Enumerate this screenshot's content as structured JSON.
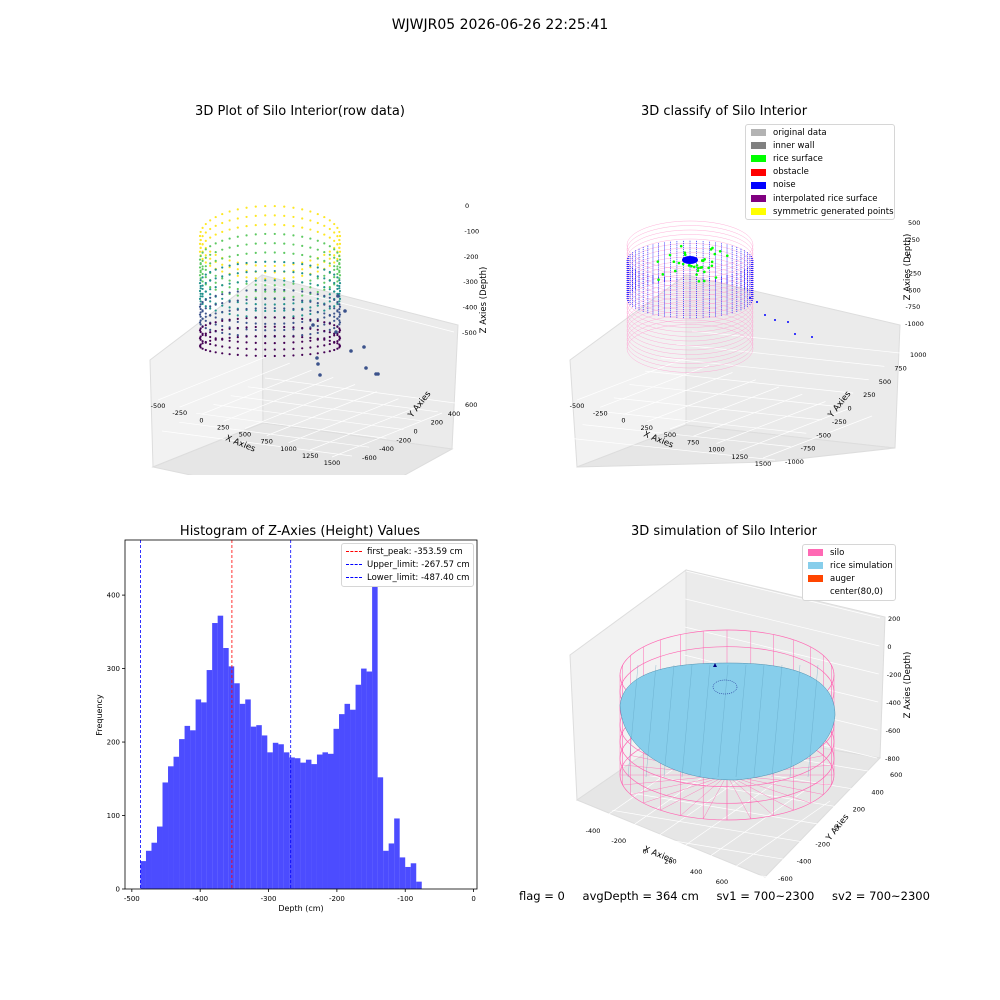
{
  "suptitle": "WJWJR05 2026-06-26 22:25:41",
  "panels": {
    "raw": {
      "title": "3D Plot of Silo Interior(row data)",
      "xlabel": "X Axies",
      "ylabel": "Y Axies",
      "zlabel": "Z Axies (Depth)",
      "x_ticks": [
        "-500",
        "-250",
        "0",
        "250",
        "500",
        "750",
        "1000",
        "1250",
        "1500"
      ],
      "y_ticks": [
        "-600",
        "-400",
        "-200",
        "0",
        "200",
        "400",
        "600"
      ],
      "z_ticks": [
        "0",
        "-100",
        "-200",
        "-300",
        "-400",
        "-500"
      ]
    },
    "classify": {
      "title": "3D classify of Silo Interior",
      "xlabel": "X Axies",
      "ylabel": "Y Axies",
      "zlabel": "Z Axies (Depth)",
      "x_ticks": [
        "-500",
        "-250",
        "0",
        "250",
        "500",
        "750",
        "1000",
        "1250",
        "1500"
      ],
      "y_ticks": [
        "-1000",
        "-750",
        "-500",
        "-250",
        "0",
        "250",
        "500",
        "750",
        "1000"
      ],
      "z_ticks": [
        "500",
        "250",
        "0",
        "-250",
        "-500",
        "-750",
        "-1000"
      ],
      "legend": [
        {
          "label": "original data",
          "color": "#b3b3b3"
        },
        {
          "label": "inner wall",
          "color": "#808080"
        },
        {
          "label": "rice surface",
          "color": "#00ff00"
        },
        {
          "label": "obstacle",
          "color": "#ff0000"
        },
        {
          "label": "noise",
          "color": "#0000ff"
        },
        {
          "label": "interpolated rice surface",
          "color": "#800080"
        },
        {
          "label": "symmetric generated points",
          "color": "#ffff00"
        }
      ]
    },
    "simulation": {
      "title": "3D simulation of Silo Interior",
      "xlabel": "X Axies",
      "ylabel": "Y Axies",
      "zlabel": "Z Axies (Depth)",
      "x_ticks": [
        "-400",
        "-200",
        "0",
        "200",
        "400",
        "600"
      ],
      "y_ticks": [
        "-600",
        "-400",
        "-200",
        "0",
        "200",
        "400",
        "600"
      ],
      "z_ticks": [
        "200",
        "0",
        "-200",
        "-400",
        "-600",
        "-800"
      ],
      "legend": [
        {
          "label": "silo",
          "color": "#ff69b4"
        },
        {
          "label": "rice simulation",
          "color": "#87ceeb"
        },
        {
          "label": "auger",
          "color": "#ff4500"
        },
        {
          "label": "center(80,0)",
          "color": ""
        }
      ]
    }
  },
  "chart_data": {
    "type": "bar",
    "title": "Histogram of Z-Axies (Height) Values",
    "xlabel": "Depth (cm)",
    "ylabel": "Frequency",
    "xlim": [
      -510,
      5
    ],
    "ylim": [
      0,
      475
    ],
    "xticks": [
      -500,
      -400,
      -300,
      -200,
      -100,
      0
    ],
    "yticks": [
      0,
      100,
      200,
      300,
      400
    ],
    "bar_color": "#0000ff",
    "bin_start": -487.4,
    "bin_width": 8.07,
    "values": [
      38,
      52,
      63,
      85,
      145,
      167,
      180,
      204,
      222,
      216,
      258,
      254,
      298,
      362,
      372,
      328,
      303,
      280,
      252,
      258,
      221,
      223,
      209,
      186,
      199,
      197,
      186,
      179,
      178,
      172,
      176,
      170,
      183,
      186,
      184,
      218,
      238,
      252,
      244,
      278,
      300,
      296,
      447,
      152,
      52,
      62,
      96,
      43,
      30,
      35,
      10
    ],
    "vlines": [
      {
        "label": "first_peak: -353.59 cm",
        "x": -353.59,
        "color": "#ff0000"
      },
      {
        "label": "Upper_limit: -267.57 cm",
        "x": -267.57,
        "color": "#0000ff"
      },
      {
        "label": "Lower_limit: -487.40 cm",
        "x": -487.4,
        "color": "#0000ff"
      }
    ],
    "legend_position": "upper right"
  },
  "footer": {
    "flag": "flag = 0",
    "avg": "avgDepth = 364 cm",
    "sv1": "sv1 = 700~2300",
    "sv2": "sv2 = 700~2300"
  }
}
